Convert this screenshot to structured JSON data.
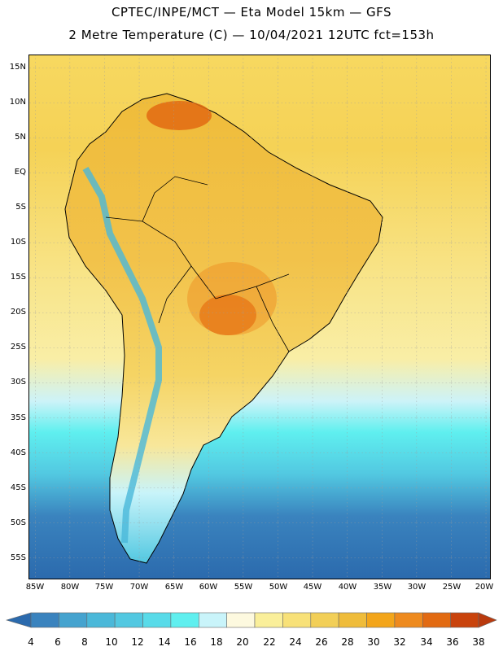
{
  "header": {
    "line1": "CPTEC/INPE/MCT  —   Eta Model 15km  —  GFS",
    "line2": "2 Metre Temperature (C)  —  10/04/2021 12UTC fct=153h"
  },
  "map": {
    "lat_labels": [
      "15N",
      "10N",
      "5N",
      "EQ",
      "5S",
      "10S",
      "15S",
      "20S",
      "25S",
      "30S",
      "35S",
      "40S",
      "45S",
      "50S",
      "55S"
    ],
    "lon_labels": [
      "85W",
      "80W",
      "75W",
      "70W",
      "65W",
      "60W",
      "55W",
      "50W",
      "45W",
      "40W",
      "35W",
      "30W",
      "25W",
      "20W"
    ]
  },
  "colorbar": {
    "labels": [
      "4",
      "6",
      "8",
      "10",
      "12",
      "14",
      "16",
      "18",
      "20",
      "22",
      "24",
      "26",
      "28",
      "30",
      "32",
      "34",
      "36",
      "38"
    ],
    "colors": [
      "#2b6aad",
      "#3a83be",
      "#45a3cf",
      "#4ab8d9",
      "#52c8e1",
      "#58dbe9",
      "#5fefef",
      "#c9f4fa",
      "#fdf9df",
      "#faef9a",
      "#f8e178",
      "#f2cf57",
      "#efbc3a",
      "#f3a51a",
      "#ee8a1e",
      "#e26a12",
      "#c9430c",
      "#b93a0e"
    ]
  }
}
